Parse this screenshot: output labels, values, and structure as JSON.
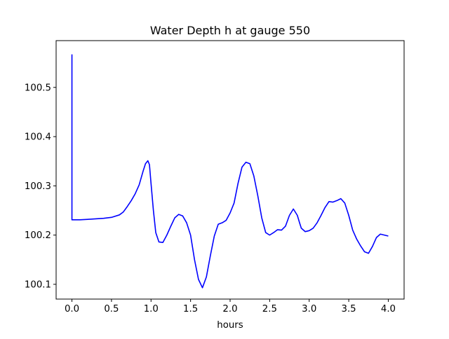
{
  "chart_data": {
    "type": "line",
    "title": "Water Depth h at gauge 550",
    "xlabel": "hours",
    "ylabel": "",
    "xlim": [
      -0.2,
      4.2
    ],
    "ylim": [
      100.07,
      100.595
    ],
    "x_ticks": [
      0.0,
      0.5,
      1.0,
      1.5,
      2.0,
      2.5,
      3.0,
      3.5,
      4.0
    ],
    "x_tick_labels": [
      "0.0",
      "0.5",
      "1.0",
      "1.5",
      "2.0",
      "2.5",
      "3.0",
      "3.5",
      "4.0"
    ],
    "y_ticks": [
      100.1,
      100.2,
      100.3,
      100.4,
      100.5
    ],
    "y_tick_labels": [
      "100.1",
      "100.2",
      "100.3",
      "100.4",
      "100.5"
    ],
    "grid": false,
    "legend": "none",
    "series": [
      {
        "color": "#0000ff",
        "x": [
          0.0,
          0.0,
          0.0,
          0.1,
          0.2,
          0.3,
          0.4,
          0.5,
          0.6,
          0.65,
          0.7,
          0.75,
          0.8,
          0.85,
          0.9,
          0.93,
          0.96,
          0.98,
          1.0,
          1.03,
          1.06,
          1.1,
          1.15,
          1.2,
          1.25,
          1.3,
          1.35,
          1.4,
          1.45,
          1.5,
          1.55,
          1.6,
          1.65,
          1.7,
          1.75,
          1.8,
          1.85,
          1.9,
          1.95,
          2.0,
          2.05,
          2.1,
          2.15,
          2.2,
          2.25,
          2.3,
          2.35,
          2.4,
          2.45,
          2.5,
          2.55,
          2.6,
          2.65,
          2.7,
          2.75,
          2.8,
          2.85,
          2.88,
          2.9,
          2.95,
          3.0,
          3.05,
          3.1,
          3.15,
          3.2,
          3.25,
          3.3,
          3.35,
          3.4,
          3.45,
          3.5,
          3.55,
          3.6,
          3.65,
          3.7,
          3.75,
          3.8,
          3.85,
          3.9,
          3.95,
          4.0
        ],
        "y": [
          100.567,
          100.231,
          100.231,
          100.231,
          100.232,
          100.233,
          100.234,
          100.236,
          100.241,
          100.247,
          100.258,
          100.27,
          100.284,
          100.302,
          100.33,
          100.345,
          100.351,
          100.343,
          100.305,
          100.25,
          100.205,
          100.186,
          100.185,
          100.2,
          100.218,
          100.235,
          100.242,
          100.239,
          100.225,
          100.2,
          100.15,
          100.11,
          100.093,
          100.115,
          100.158,
          100.198,
          100.222,
          100.225,
          100.23,
          100.245,
          100.265,
          100.305,
          100.338,
          100.348,
          100.345,
          100.32,
          100.28,
          100.235,
          100.205,
          100.2,
          100.205,
          100.211,
          100.21,
          100.218,
          100.24,
          100.253,
          100.24,
          100.224,
          100.214,
          100.207,
          100.209,
          100.214,
          100.225,
          100.24,
          100.256,
          100.268,
          100.267,
          100.27,
          100.274,
          100.265,
          100.24,
          100.21,
          100.192,
          100.178,
          100.166,
          100.163,
          100.177,
          100.195,
          100.202,
          100.2,
          100.198
        ]
      }
    ]
  }
}
